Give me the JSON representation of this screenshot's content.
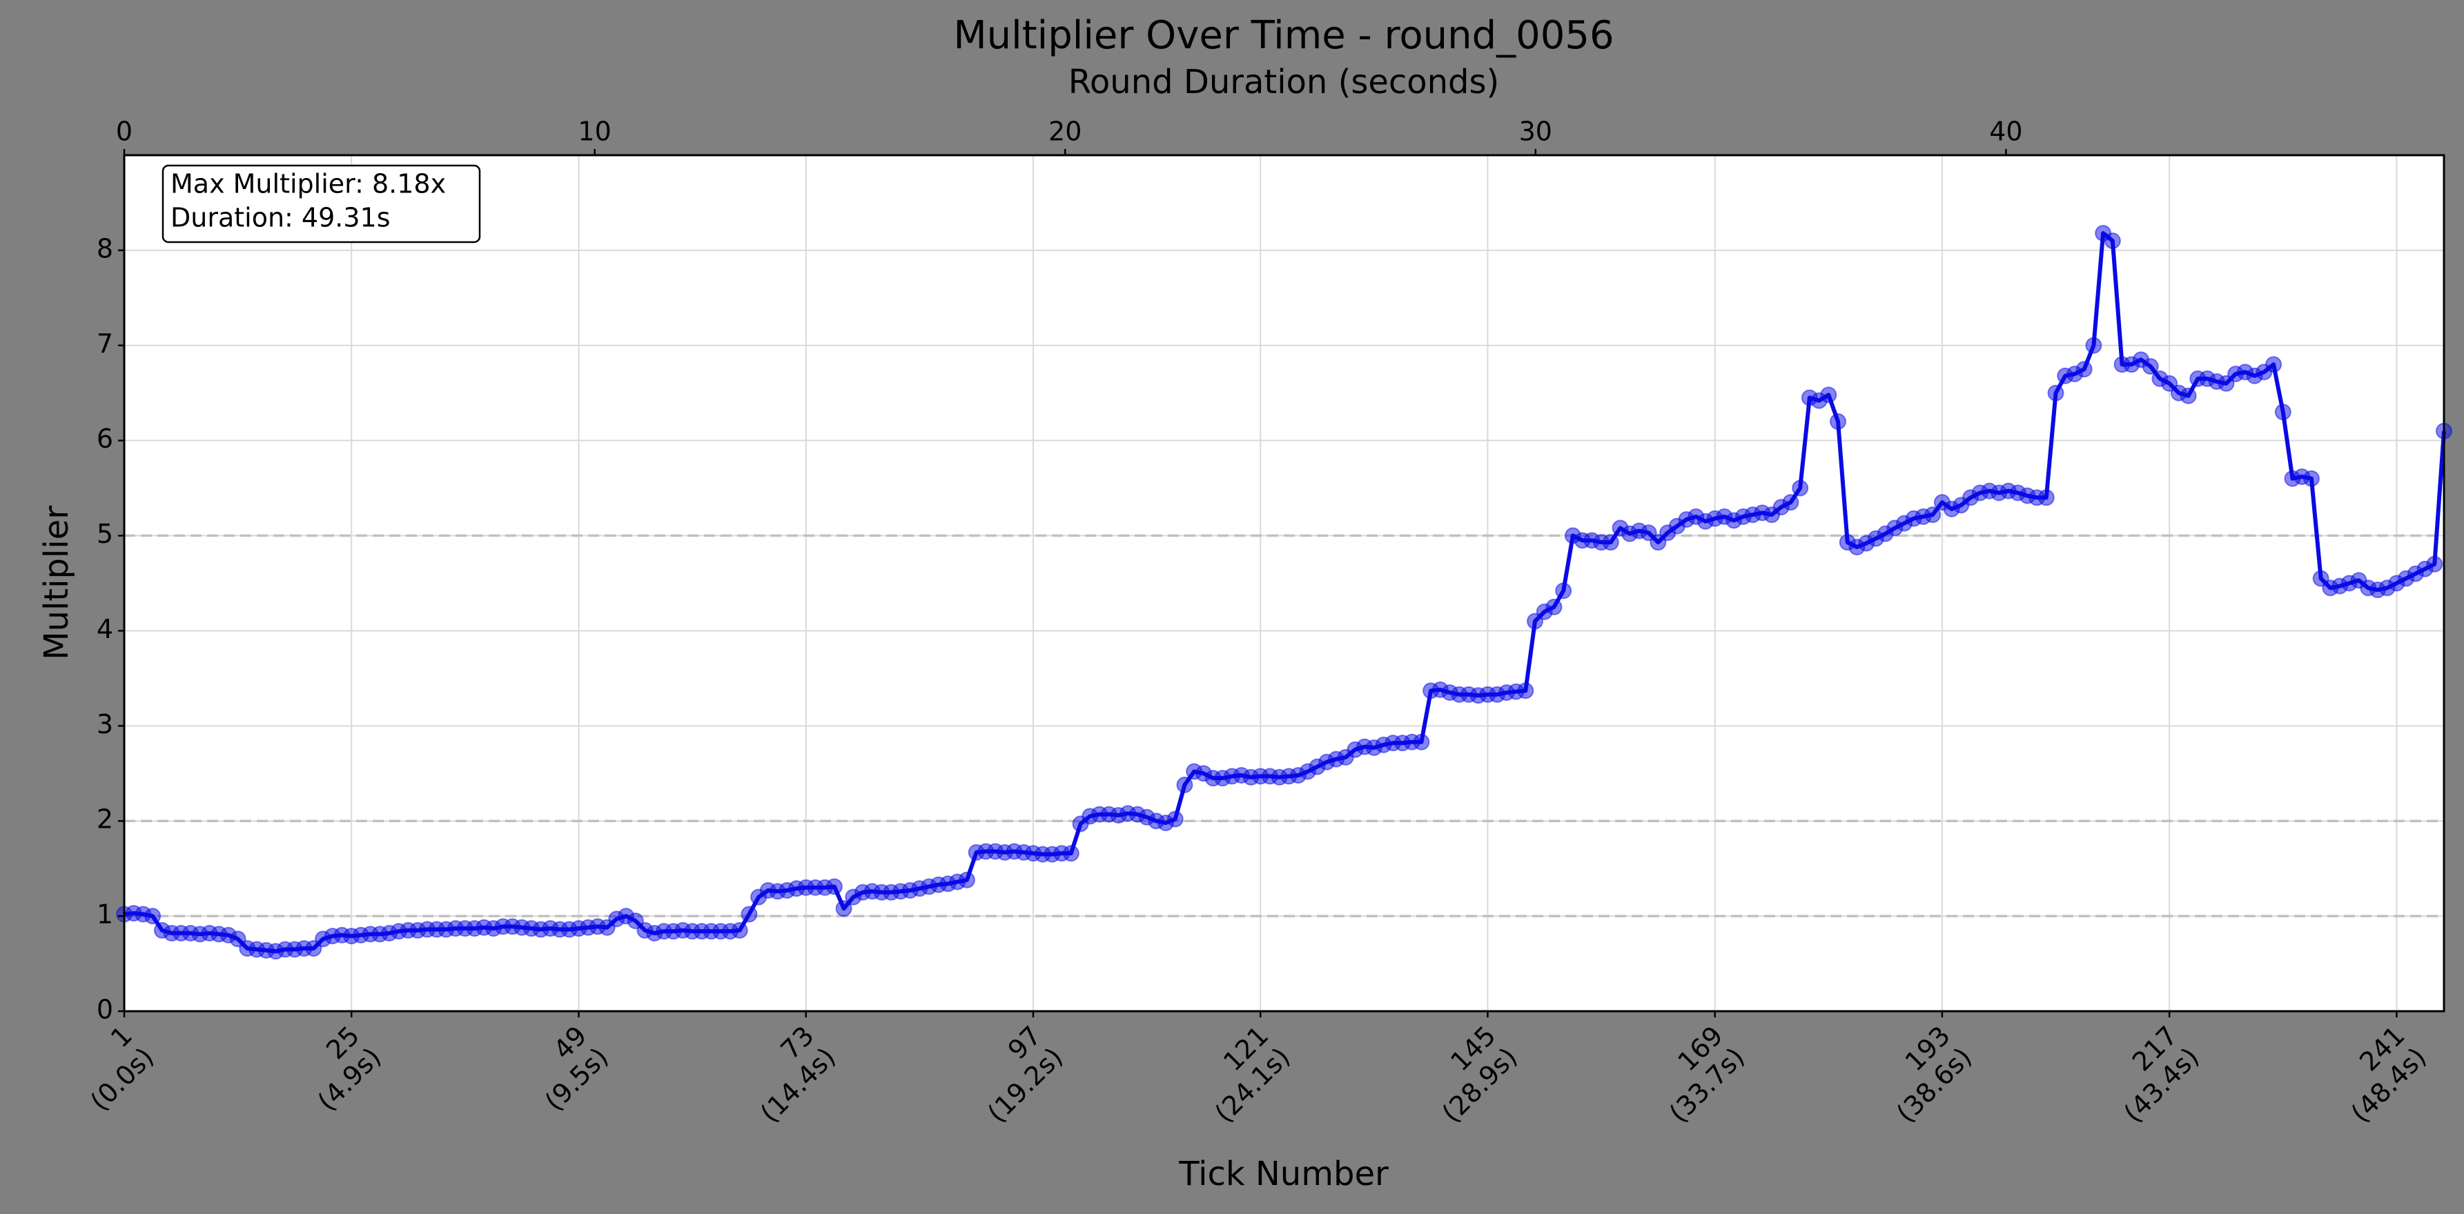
{
  "chart_data": {
    "type": "line",
    "title": "Multiplier Over Time - round_0056",
    "xlabel": "Tick Number",
    "ylabel": "Multiplier",
    "x2label": "Round Duration (seconds)",
    "annotations": [
      "Max Multiplier: 8.18x",
      "Duration: 49.31s"
    ],
    "x": [
      1,
      2,
      3,
      4,
      5,
      6,
      7,
      8,
      9,
      10,
      11,
      12,
      13,
      14,
      15,
      16,
      17,
      18,
      19,
      20,
      21,
      22,
      23,
      24,
      25,
      26,
      27,
      28,
      29,
      30,
      31,
      32,
      33,
      34,
      35,
      36,
      37,
      38,
      39,
      40,
      41,
      42,
      43,
      44,
      45,
      46,
      47,
      48,
      49,
      50,
      51,
      52,
      53,
      54,
      55,
      56,
      57,
      58,
      59,
      60,
      61,
      62,
      63,
      64,
      65,
      66,
      67,
      68,
      69,
      70,
      71,
      72,
      73,
      74,
      75,
      76,
      77,
      78,
      79,
      80,
      81,
      82,
      83,
      84,
      85,
      86,
      87,
      88,
      89,
      90,
      91,
      92,
      93,
      94,
      95,
      96,
      97,
      98,
      99,
      100,
      101,
      102,
      103,
      104,
      105,
      106,
      107,
      108,
      109,
      110,
      111,
      112,
      113,
      114,
      115,
      116,
      117,
      118,
      119,
      120,
      121,
      122,
      123,
      124,
      125,
      126,
      127,
      128,
      129,
      130,
      131,
      132,
      133,
      134,
      135,
      136,
      137,
      138,
      139,
      140,
      141,
      142,
      143,
      144,
      145,
      146,
      147,
      148,
      149,
      150,
      151,
      152,
      153,
      154,
      155,
      156,
      157,
      158,
      159,
      160,
      161,
      162,
      163,
      164,
      165,
      166,
      167,
      168,
      169,
      170,
      171,
      172,
      173,
      174,
      175,
      176,
      177,
      178,
      179,
      180,
      181,
      182,
      183,
      184,
      185,
      186,
      187,
      188,
      189,
      190,
      191,
      192,
      193,
      194,
      195,
      196,
      197,
      198,
      199,
      200,
      201,
      202,
      203,
      204,
      205,
      206,
      207,
      208,
      209,
      210,
      211,
      212,
      213,
      214,
      215,
      216,
      217,
      218,
      219,
      220,
      221,
      222,
      223,
      224,
      225,
      226,
      227,
      228,
      229,
      230,
      231,
      232,
      233,
      234,
      235,
      236,
      237,
      238,
      239,
      240,
      241,
      242,
      243,
      244,
      245,
      246
    ],
    "series": [
      {
        "color": "#0a0ae6",
        "values": [
          1.02,
          1.03,
          1.02,
          1.0,
          0.85,
          0.82,
          0.82,
          0.82,
          0.81,
          0.82,
          0.81,
          0.8,
          0.76,
          0.66,
          0.65,
          0.64,
          0.63,
          0.65,
          0.65,
          0.66,
          0.66,
          0.76,
          0.79,
          0.8,
          0.79,
          0.8,
          0.81,
          0.81,
          0.82,
          0.84,
          0.85,
          0.85,
          0.86,
          0.86,
          0.86,
          0.87,
          0.87,
          0.87,
          0.88,
          0.87,
          0.89,
          0.89,
          0.88,
          0.87,
          0.86,
          0.87,
          0.86,
          0.86,
          0.87,
          0.88,
          0.89,
          0.88,
          0.97,
          1.0,
          0.95,
          0.85,
          0.82,
          0.84,
          0.84,
          0.85,
          0.84,
          0.84,
          0.84,
          0.84,
          0.84,
          0.85,
          1.02,
          1.2,
          1.27,
          1.26,
          1.27,
          1.29,
          1.3,
          1.3,
          1.3,
          1.31,
          1.08,
          1.2,
          1.25,
          1.26,
          1.25,
          1.25,
          1.26,
          1.27,
          1.29,
          1.31,
          1.33,
          1.34,
          1.36,
          1.38,
          1.67,
          1.68,
          1.68,
          1.67,
          1.68,
          1.67,
          1.66,
          1.65,
          1.65,
          1.66,
          1.66,
          1.97,
          2.05,
          2.07,
          2.07,
          2.06,
          2.08,
          2.07,
          2.04,
          2.0,
          1.98,
          2.02,
          2.38,
          2.52,
          2.5,
          2.45,
          2.45,
          2.47,
          2.48,
          2.46,
          2.47,
          2.47,
          2.46,
          2.47,
          2.48,
          2.52,
          2.57,
          2.62,
          2.65,
          2.67,
          2.75,
          2.78,
          2.77,
          2.8,
          2.82,
          2.82,
          2.83,
          2.83,
          3.37,
          3.38,
          3.35,
          3.33,
          3.33,
          3.32,
          3.33,
          3.33,
          3.35,
          3.36,
          3.37,
          4.1,
          4.2,
          4.25,
          4.42,
          5.0,
          4.95,
          4.95,
          4.93,
          4.93,
          5.08,
          5.02,
          5.05,
          5.03,
          4.93,
          5.03,
          5.1,
          5.17,
          5.2,
          5.15,
          5.18,
          5.2,
          5.16,
          5.2,
          5.22,
          5.24,
          5.22,
          5.3,
          5.35,
          5.5,
          6.45,
          6.42,
          6.48,
          6.2,
          4.93,
          4.88,
          4.92,
          4.97,
          5.02,
          5.08,
          5.13,
          5.18,
          5.2,
          5.22,
          5.35,
          5.28,
          5.32,
          5.4,
          5.45,
          5.47,
          5.45,
          5.47,
          5.45,
          5.42,
          5.4,
          5.4,
          6.5,
          6.68,
          6.7,
          6.75,
          7.0,
          8.18,
          8.1,
          6.8,
          6.8,
          6.85,
          6.78,
          6.65,
          6.6,
          6.5,
          6.47,
          6.65,
          6.65,
          6.62,
          6.6,
          6.7,
          6.72,
          6.68,
          6.72,
          6.8,
          6.3,
          5.6,
          5.62,
          5.6,
          4.55,
          4.45,
          4.47,
          4.5,
          4.53,
          4.45,
          4.43,
          4.45,
          4.5,
          4.55,
          4.6,
          4.65,
          4.7,
          6.1
        ]
      }
    ],
    "xlim": [
      1,
      246
    ],
    "xticks": [
      {
        "value": 1,
        "label": [
          "1",
          "(0.0s)"
        ]
      },
      {
        "value": 25,
        "label": [
          "25",
          "(4.9s)"
        ]
      },
      {
        "value": 49,
        "label": [
          "49",
          "(9.5s)"
        ]
      },
      {
        "value": 73,
        "label": [
          "73",
          "(14.4s)"
        ]
      },
      {
        "value": 97,
        "label": [
          "97",
          "(19.2s)"
        ]
      },
      {
        "value": 121,
        "label": [
          "121",
          "(24.1s)"
        ]
      },
      {
        "value": 145,
        "label": [
          "145",
          "(28.9s)"
        ]
      },
      {
        "value": 169,
        "label": [
          "169",
          "(33.7s)"
        ]
      },
      {
        "value": 193,
        "label": [
          "193",
          "(38.6s)"
        ]
      },
      {
        "value": 217,
        "label": [
          "217",
          "(43.4s)"
        ]
      },
      {
        "value": 241,
        "label": [
          "241",
          "(48.4s)"
        ]
      }
    ],
    "x2lim": [
      0,
      49.31
    ],
    "x2ticks": [
      0,
      10,
      20,
      30,
      40
    ],
    "ylim": [
      0,
      9
    ],
    "yticks": [
      0,
      1,
      2,
      3,
      4,
      5,
      6,
      7,
      8
    ],
    "hlines": [
      1,
      2,
      5
    ],
    "grid": true
  }
}
